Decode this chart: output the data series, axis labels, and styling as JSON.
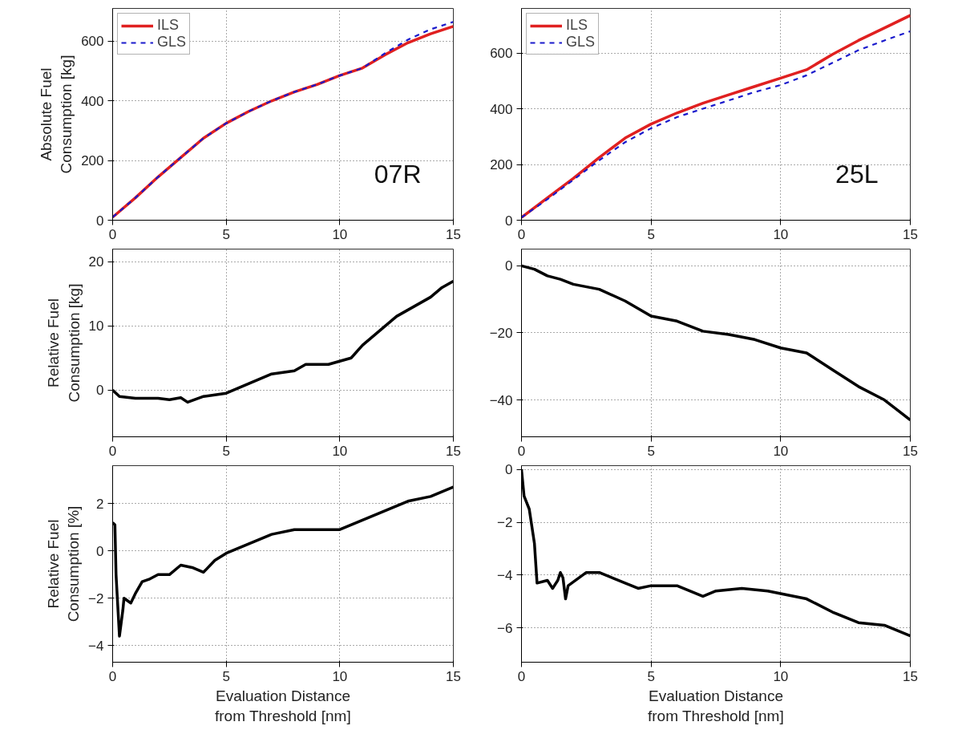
{
  "chart_data": [
    {
      "type": "line",
      "ylabel": "Absolute Fuel\nConsumption [kg]",
      "xlim": [
        0,
        15
      ],
      "xticks": [
        0,
        5,
        10,
        15
      ],
      "ylim": [
        0,
        710
      ],
      "yticks": [
        0,
        200,
        400,
        600
      ],
      "grid": true,
      "legend": "top left",
      "annotations": [
        "07R"
      ],
      "series": [
        {
          "name": "ILS",
          "color": "#e02020",
          "line_style": "solid",
          "x": [
            0,
            1,
            2,
            3,
            4,
            5,
            6,
            7,
            8,
            9,
            10,
            11,
            12,
            13,
            14,
            15
          ],
          "values": [
            10,
            75,
            145,
            210,
            275,
            325,
            365,
            400,
            430,
            455,
            485,
            510,
            555,
            595,
            625,
            650
          ]
        },
        {
          "name": "GLS",
          "color": "#1a1acc",
          "line_style": "dashed",
          "x": [
            0,
            1,
            2,
            3,
            4,
            5,
            6,
            7,
            8,
            9,
            10,
            11,
            12,
            13,
            14,
            15
          ],
          "values": [
            10,
            75,
            145,
            210,
            275,
            325,
            365,
            400,
            430,
            455,
            485,
            510,
            560,
            605,
            640,
            665
          ]
        }
      ]
    },
    {
      "type": "line",
      "xlim": [
        0,
        15
      ],
      "xticks": [
        0,
        5,
        10,
        15
      ],
      "ylim": [
        0,
        760
      ],
      "yticks": [
        0,
        200,
        400,
        600
      ],
      "grid": true,
      "legend": "top left",
      "annotations": [
        "25L"
      ],
      "series": [
        {
          "name": "ILS",
          "color": "#e02020",
          "line_style": "solid",
          "x": [
            0,
            1,
            2,
            3,
            4,
            5,
            6,
            7,
            8,
            9,
            10,
            11,
            12,
            13,
            14,
            15
          ],
          "values": [
            10,
            80,
            150,
            225,
            295,
            345,
            385,
            420,
            450,
            480,
            510,
            540,
            595,
            645,
            690,
            735
          ]
        },
        {
          "name": "GLS",
          "color": "#1a1acc",
          "line_style": "dashed",
          "x": [
            0,
            1,
            2,
            3,
            4,
            5,
            6,
            7,
            8,
            9,
            10,
            11,
            12,
            13,
            14,
            15
          ],
          "values": [
            10,
            75,
            145,
            215,
            280,
            330,
            370,
            400,
            430,
            460,
            485,
            520,
            565,
            610,
            645,
            678
          ]
        }
      ]
    },
    {
      "type": "line",
      "ylabel": "Relative Fuel\nConsumption [kg]",
      "xlim": [
        0,
        15
      ],
      "xticks": [
        0,
        5,
        10,
        15
      ],
      "ylim": [
        -7.3,
        22
      ],
      "yticks": [
        0,
        10,
        20
      ],
      "grid": true,
      "series": [
        {
          "color": "#000000",
          "line_style": "solid",
          "x": [
            0,
            0.3,
            1,
            2,
            2.5,
            3,
            3.3,
            4,
            5,
            6,
            7,
            8,
            8.5,
            9.5,
            10,
            10.5,
            11,
            12,
            12.5,
            13,
            14,
            14.5,
            15
          ],
          "values": [
            0,
            -1,
            -1.3,
            -1.3,
            -1.5,
            -1.2,
            -1.9,
            -1,
            -0.5,
            1,
            2.5,
            3,
            4,
            4,
            4.5,
            5,
            7,
            10,
            11.5,
            12.5,
            14.5,
            16,
            17
          ]
        }
      ]
    },
    {
      "type": "line",
      "xlim": [
        0,
        15
      ],
      "xticks": [
        0,
        5,
        10,
        15
      ],
      "ylim": [
        -51,
        5
      ],
      "yticks": [
        -40,
        -20,
        0
      ],
      "grid": true,
      "series": [
        {
          "color": "#000000",
          "line_style": "solid",
          "x": [
            0,
            0.5,
            1,
            1.5,
            2,
            3,
            4,
            5,
            6,
            7,
            8,
            9,
            10,
            11,
            12,
            13,
            14,
            15
          ],
          "values": [
            0,
            -1,
            -3,
            -4,
            -5.5,
            -7,
            -10.5,
            -15,
            -16.5,
            -19.5,
            -20.5,
            -22,
            -24.5,
            -26,
            -31,
            -36,
            -40,
            -46
          ]
        }
      ]
    },
    {
      "type": "line",
      "xlabel": "Evaluation Distance\nfrom Threshold [nm]",
      "ylabel": "Relative Fuel\nConsumption [%]",
      "xlim": [
        0,
        15
      ],
      "xticks": [
        0,
        5,
        10,
        15
      ],
      "ylim": [
        -4.7,
        3.6
      ],
      "yticks": [
        -4,
        -2,
        0,
        2
      ],
      "grid": true,
      "series": [
        {
          "color": "#000000",
          "line_style": "solid",
          "x": [
            0,
            0.1,
            0.15,
            0.3,
            0.45,
            0.5,
            0.8,
            1,
            1.3,
            1.6,
            2,
            2.5,
            3,
            3.5,
            4,
            4.5,
            5,
            6,
            7,
            8,
            9,
            10,
            11,
            12,
            13,
            14,
            15
          ],
          "values": [
            1.2,
            1.1,
            -1,
            -3.6,
            -2.5,
            -2,
            -2.2,
            -1.8,
            -1.3,
            -1.2,
            -1,
            -1,
            -0.6,
            -0.7,
            -0.9,
            -0.4,
            -0.1,
            0.3,
            0.7,
            0.9,
            0.9,
            0.9,
            1.3,
            1.7,
            2.1,
            2.3,
            2.7
          ]
        }
      ]
    },
    {
      "type": "line",
      "xlabel": "Evaluation Distance\nfrom Threshold [nm]",
      "xlim": [
        0,
        15
      ],
      "xticks": [
        0,
        5,
        10,
        15
      ],
      "ylim": [
        -7.3,
        0.15
      ],
      "yticks": [
        -6,
        -4,
        -2,
        0
      ],
      "grid": true,
      "series": [
        {
          "color": "#000000",
          "line_style": "solid",
          "x": [
            0,
            0.1,
            0.3,
            0.5,
            0.6,
            1,
            1.2,
            1.4,
            1.5,
            1.6,
            1.7,
            1.8,
            2.5,
            3,
            4,
            4.5,
            5,
            6,
            7,
            7.5,
            8.5,
            9.5,
            10.5,
            11,
            12,
            13,
            14,
            15
          ],
          "values": [
            0,
            -1,
            -1.5,
            -2.8,
            -4.3,
            -4.2,
            -4.5,
            -4.2,
            -3.9,
            -4.1,
            -4.9,
            -4.4,
            -3.9,
            -3.9,
            -4.3,
            -4.5,
            -4.4,
            -4.4,
            -4.8,
            -4.6,
            -4.5,
            -4.6,
            -4.8,
            -4.9,
            -5.4,
            -5.8,
            -5.9,
            -6.3
          ]
        }
      ]
    }
  ]
}
